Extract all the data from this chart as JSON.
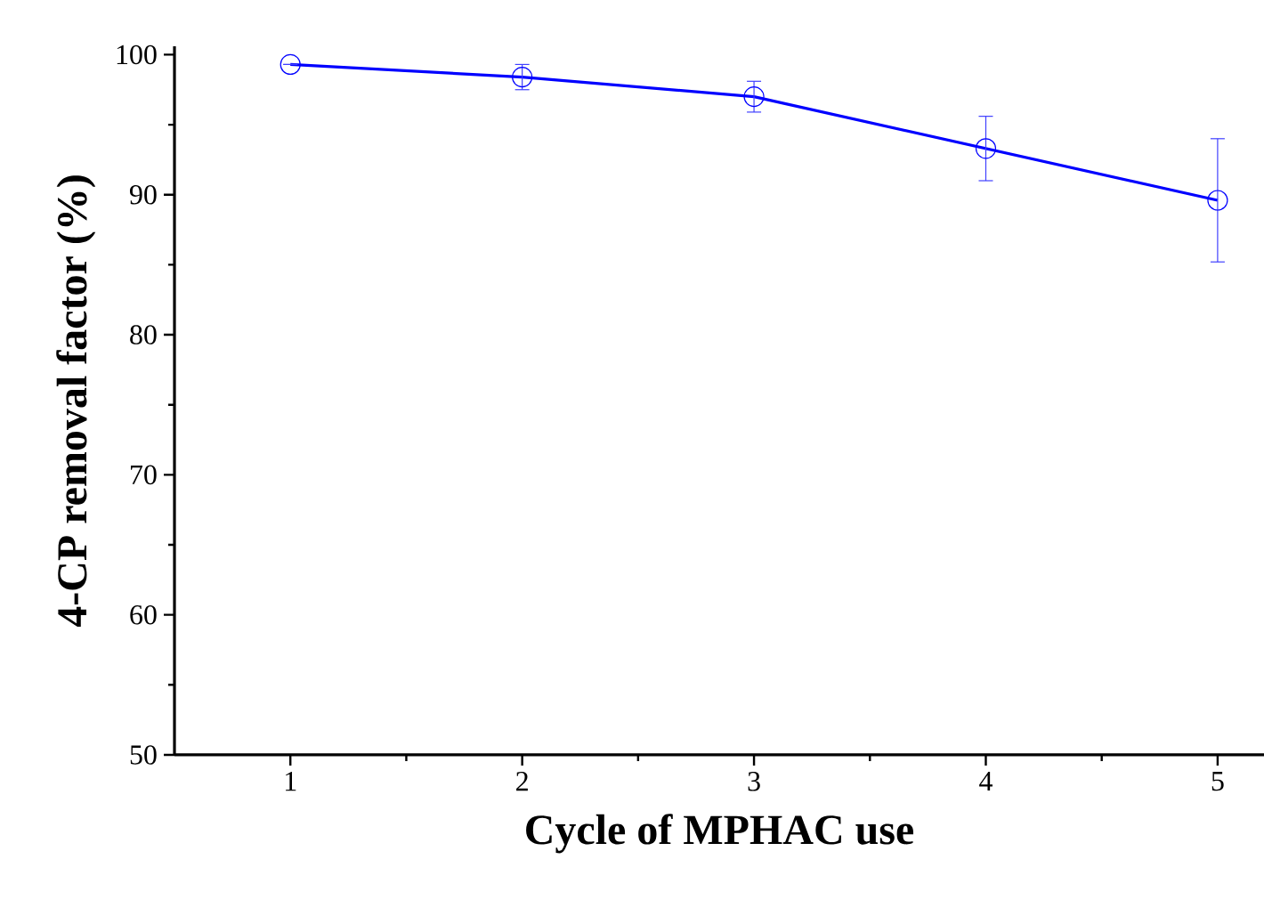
{
  "chart_data": {
    "type": "line",
    "xlabel": "Cycle of MPHAC use",
    "ylabel": "4-CP removal factor (%)",
    "x": [
      1,
      2,
      3,
      4,
      5
    ],
    "series": [
      {
        "color": "#0000ff",
        "values": [
          99.3,
          98.4,
          97.0,
          93.3,
          89.6
        ],
        "errors": [
          null,
          0.9,
          1.1,
          2.3,
          4.4
        ]
      }
    ],
    "xlim": [
      0.5,
      5.2
    ],
    "ylim": [
      50,
      100.6
    ],
    "xticks": [
      1,
      2,
      3,
      4,
      5
    ],
    "yticks": [
      50,
      60,
      70,
      80,
      90,
      100
    ],
    "marker": "circle",
    "line_style": "solid"
  }
}
